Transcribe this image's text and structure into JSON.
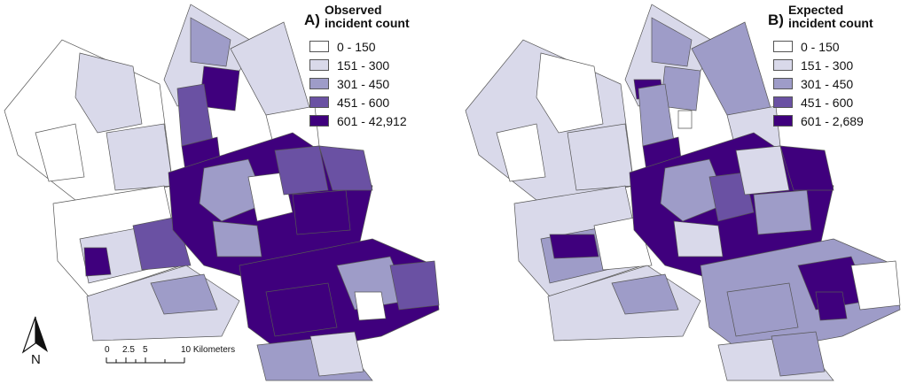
{
  "panel_a": {
    "letter": "A)",
    "title_line1": "Observed",
    "title_line2": "incident count",
    "classes": [
      {
        "label": "0 - 150",
        "color": "#ffffff"
      },
      {
        "label": "151 - 300",
        "color": "#d9d9ea"
      },
      {
        "label": "301 - 450",
        "color": "#9e9cc8"
      },
      {
        "label": "451 - 600",
        "color": "#6a51a3"
      },
      {
        "label": "601 - 42,912",
        "color": "#3f007d"
      }
    ]
  },
  "panel_b": {
    "letter": "B)",
    "title_line1": "Expected",
    "title_line2": "incident count",
    "classes": [
      {
        "label": "0 - 150",
        "color": "#ffffff"
      },
      {
        "label": "151 - 300",
        "color": "#d9d9ea"
      },
      {
        "label": "301 - 450",
        "color": "#9e9cc8"
      },
      {
        "label": "451 - 600",
        "color": "#6a51a3"
      },
      {
        "label": "601 - 2,689",
        "color": "#3f007d"
      }
    ]
  },
  "north_arrow": {
    "label": "N"
  },
  "scale_bar": {
    "ticks": [
      "0",
      "2.5",
      "5",
      "10 Kilometers"
    ]
  }
}
